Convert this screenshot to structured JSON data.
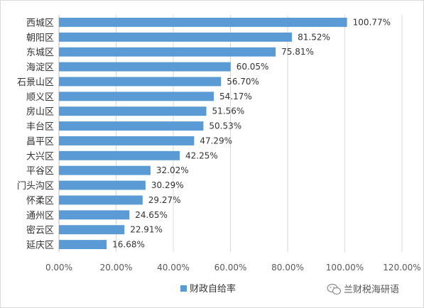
{
  "chart_data": {
    "type": "bar",
    "orientation": "horizontal",
    "categories": [
      "西城区",
      "朝阳区",
      "东城区",
      "海淀区",
      "石景山区",
      "顺义区",
      "房山区",
      "丰台区",
      "昌平区",
      "大兴区",
      "平谷区",
      "门头沟区",
      "怀柔区",
      "通州区",
      "密云区",
      "延庆区"
    ],
    "series": [
      {
        "name": "财政自给率",
        "values": [
          100.77,
          81.52,
          75.81,
          60.05,
          56.7,
          54.17,
          51.56,
          50.53,
          47.29,
          42.25,
          32.02,
          30.29,
          29.27,
          24.65,
          22.91,
          16.68
        ],
        "data_labels": [
          "100.77%",
          "81.52%",
          "75.81%",
          "60.05%",
          "56.70%",
          "54.17%",
          "51.56%",
          "50.53%",
          "47.29%",
          "42.25%",
          "32.02%",
          "30.29%",
          "29.27%",
          "24.65%",
          "22.91%",
          "16.68%"
        ],
        "color": "#5b9bd5"
      }
    ],
    "xlim": [
      0,
      120
    ],
    "x_ticks": [
      0,
      20,
      40,
      60,
      80,
      100,
      120
    ],
    "x_tick_labels": [
      "0.00%",
      "20.00%",
      "40.00%",
      "60.00%",
      "80.00%",
      "100.00%",
      "120.00%"
    ],
    "grid": true,
    "legend_position": "bottom"
  },
  "watermark": {
    "text": "兰财税海研语",
    "icon": "wechat-icon"
  },
  "colors": {
    "grid": "#d9d9d9",
    "axis": "#bfbfbf"
  }
}
